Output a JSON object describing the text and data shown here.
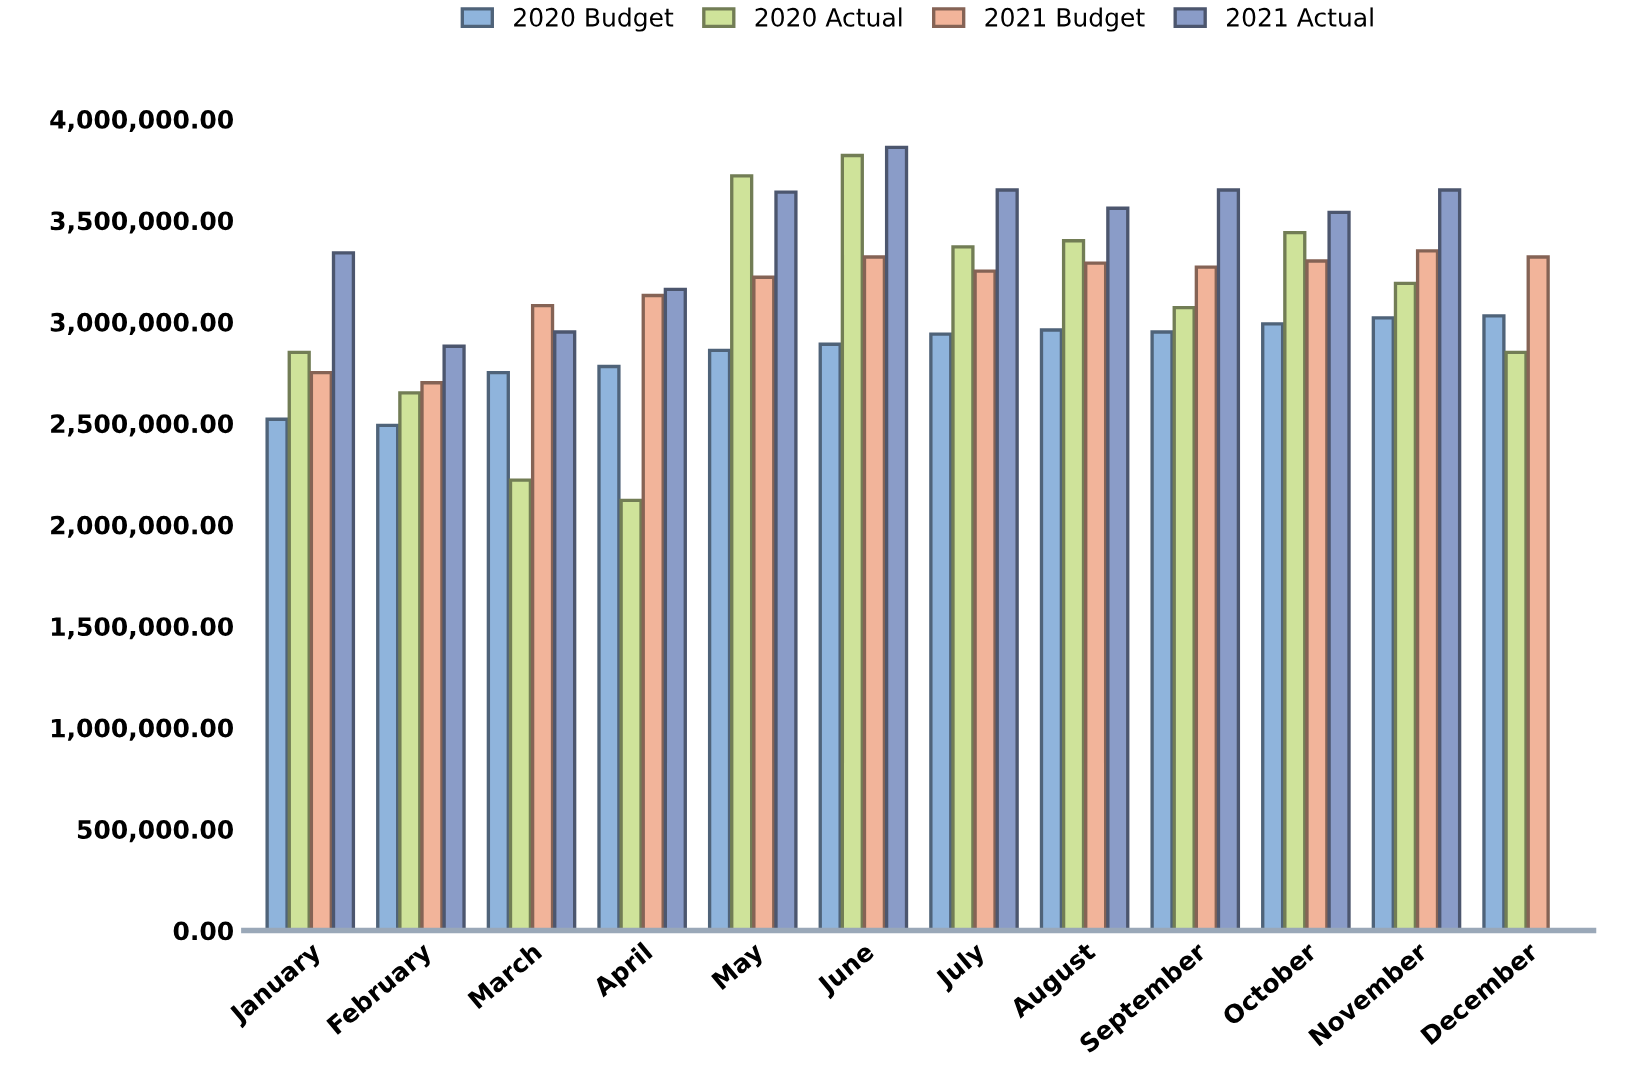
{
  "chart_data": {
    "type": "bar",
    "categories": [
      "January",
      "February",
      "March",
      "April",
      "May",
      "June",
      "July",
      "August",
      "September",
      "October",
      "November",
      "December"
    ],
    "series": [
      {
        "name": "2020 Budget",
        "color": "#8fb4dc",
        "values": [
          2520000,
          2490000,
          2750000,
          2780000,
          2860000,
          2890000,
          2940000,
          2960000,
          2950000,
          2990000,
          3020000,
          3030000
        ]
      },
      {
        "name": "2020 Actual",
        "color": "#cfe39a",
        "values": [
          2850000,
          2650000,
          2220000,
          2120000,
          3720000,
          3820000,
          3370000,
          3400000,
          3070000,
          3440000,
          3190000,
          2850000
        ]
      },
      {
        "name": "2021 Budget",
        "color": "#f2b49a",
        "values": [
          2750000,
          2700000,
          3080000,
          3130000,
          3220000,
          3320000,
          3250000,
          3290000,
          3270000,
          3300000,
          3350000,
          3320000
        ]
      },
      {
        "name": "2021 Actual",
        "color": "#8a9cc8",
        "values": [
          3340000,
          2880000,
          2950000,
          3160000,
          3640000,
          3860000,
          3650000,
          3560000,
          3650000,
          3540000,
          3650000,
          null
        ]
      }
    ],
    "ylim": [
      0,
      4000000
    ],
    "yticks": [
      {
        "value": 0,
        "label": "0.00"
      },
      {
        "value": 500000,
        "label": "500,000.00"
      },
      {
        "value": 1000000,
        "label": "1,000,000.00"
      },
      {
        "value": 1500000,
        "label": "1,500,000.00"
      },
      {
        "value": 2000000,
        "label": "2,000,000.00"
      },
      {
        "value": 2500000,
        "label": "2,500,000.00"
      },
      {
        "value": 3000000,
        "label": "3,000,000.00"
      },
      {
        "value": 3500000,
        "label": "3,500,000.00"
      },
      {
        "value": 4000000,
        "label": "4,000,000.00"
      }
    ],
    "grid": false,
    "legend": "top"
  }
}
